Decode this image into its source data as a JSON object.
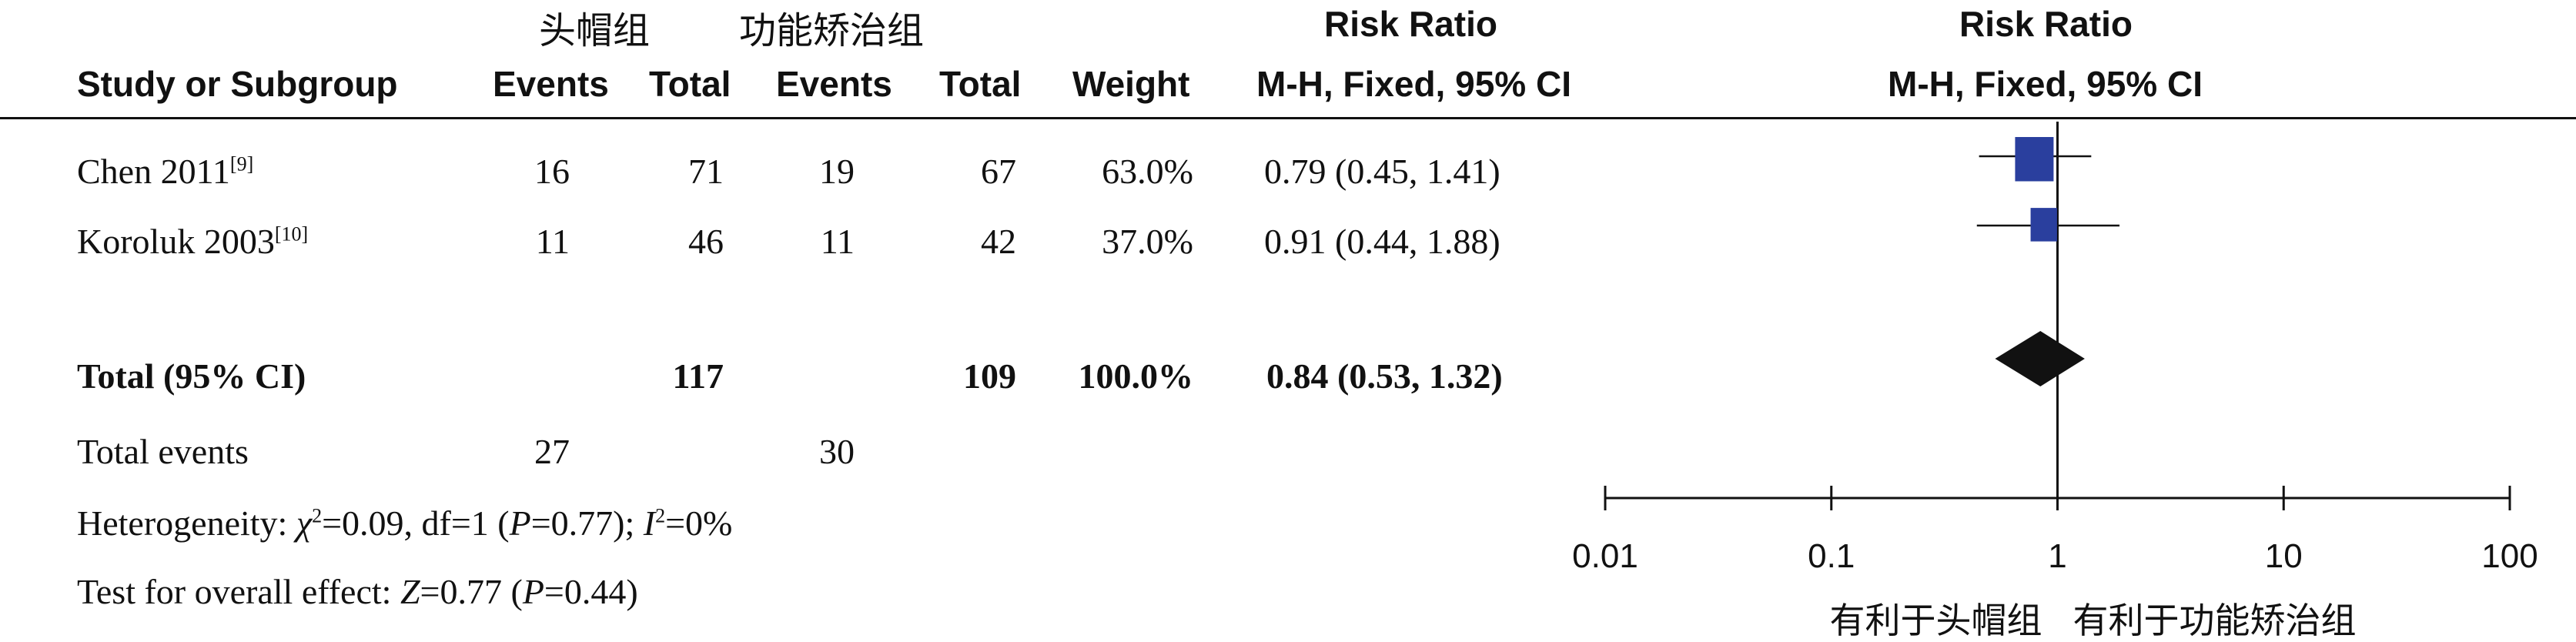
{
  "headers": {
    "group1": "头帽组",
    "group2": "功能矫治组",
    "study": "Study or Subgroup",
    "events1": "Events",
    "total1": "Total",
    "events2": "Events",
    "total2": "Total",
    "weight": "Weight",
    "rr_title": "Risk Ratio",
    "rr_method": "M-H, Fixed, 95% CI",
    "plot_title": "Risk Ratio",
    "plot_method": "M-H, Fixed, 95% CI"
  },
  "studies": [
    {
      "name": "Chen 2011",
      "ref": "[9]",
      "events1": "16",
      "total1": "71",
      "events2": "19",
      "total2": "67",
      "weight": "63.0%",
      "ci": "0.79 (0.45, 1.41)"
    },
    {
      "name": "Koroluk 2003",
      "ref": "[10]",
      "events1": "11",
      "total1": "46",
      "events2": "11",
      "total2": "42",
      "weight": "37.0%",
      "ci": "0.91 (0.44, 1.88)"
    }
  ],
  "total": {
    "label": "Total (95% CI)",
    "total1": "117",
    "total2": "109",
    "weight": "100.0%",
    "ci": "0.84 (0.53, 1.32)"
  },
  "total_events": {
    "label": "Total events",
    "events1": "27",
    "events2": "30"
  },
  "heterogeneity": {
    "prefix": "Heterogeneity: ",
    "chi_symbol": "χ",
    "chi_exp": "2",
    "chi_rest": "=0.09, df=1 (",
    "p_italic": "P",
    "p_rest": "=0.77); ",
    "i_italic": "I",
    "i_exp": "2",
    "i_rest": "=0%"
  },
  "overall": {
    "prefix": "Test for overall effect: ",
    "z_italic": "Z",
    "z_rest": "=0.77 (",
    "p_italic": "P",
    "p_rest": "=0.44)"
  },
  "colors": {
    "square": "#2a3f9e",
    "diamond": "#111111",
    "line": "#111111"
  },
  "chart_data": {
    "type": "forest",
    "scale": "log",
    "xlim": [
      0.01,
      100
    ],
    "ticks": [
      {
        "value": 0.01,
        "label": "0.01"
      },
      {
        "value": 0.1,
        "label": "0.1"
      },
      {
        "value": 1,
        "label": "1"
      },
      {
        "value": 10,
        "label": "10"
      },
      {
        "value": 100,
        "label": "100"
      }
    ],
    "favours_left": "有利于头帽组",
    "favours_right": "有利于功能矫治组",
    "studies": [
      {
        "rr": 0.79,
        "lo": 0.45,
        "hi": 1.41,
        "weight": 63.0
      },
      {
        "rr": 0.91,
        "lo": 0.44,
        "hi": 1.88,
        "weight": 37.0
      }
    ],
    "pooled": {
      "rr": 0.84,
      "lo": 0.53,
      "hi": 1.32
    }
  }
}
